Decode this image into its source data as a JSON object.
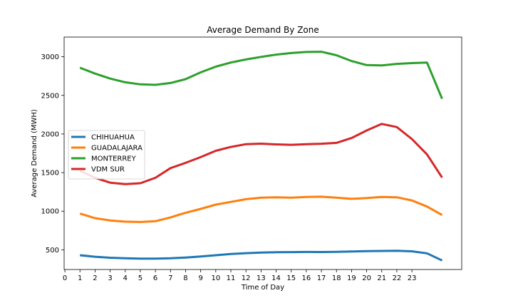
{
  "chart_data": {
    "type": "line",
    "title": "Average Demand By Zone",
    "xlabel": "Time of Day",
    "ylabel": "Average Demand (MWH)",
    "xlim": [
      -0.05,
      26.3
    ],
    "ylim": [
      245,
      3255
    ],
    "xticks": [
      0,
      1,
      2,
      3,
      4,
      5,
      6,
      7,
      8,
      9,
      10,
      11,
      12,
      13,
      14,
      15,
      16,
      17,
      18,
      19,
      20,
      21,
      22,
      23
    ],
    "yticks": [
      500,
      1000,
      1500,
      2000,
      2500,
      3000
    ],
    "grid": false,
    "legend_position": "center-left",
    "x": [
      1,
      2,
      3,
      4,
      5,
      6,
      7,
      8,
      9,
      10,
      11,
      12,
      13,
      14,
      15,
      16,
      17,
      18,
      19,
      20,
      21,
      22,
      23,
      24,
      25
    ],
    "series": [
      {
        "name": "CHIHUAHUA",
        "color": "#1f77b4",
        "values": [
          430,
          410,
          397,
          390,
          386,
          385,
          390,
          400,
          413,
          430,
          445,
          456,
          464,
          468,
          470,
          472,
          471,
          473,
          478,
          483,
          485,
          487,
          480,
          455,
          362
        ]
      },
      {
        "name": "GUADALAJARA",
        "color": "#ff7f0e",
        "values": [
          970,
          910,
          880,
          865,
          860,
          870,
          920,
          980,
          1030,
          1085,
          1120,
          1155,
          1175,
          1180,
          1175,
          1185,
          1188,
          1175,
          1160,
          1170,
          1185,
          1180,
          1140,
          1060,
          950
        ]
      },
      {
        "name": "MONTERREY",
        "color": "#2ca02c",
        "values": [
          2858,
          2782,
          2718,
          2670,
          2643,
          2636,
          2660,
          2710,
          2798,
          2872,
          2925,
          2965,
          2998,
          3028,
          3048,
          3062,
          3065,
          3020,
          2945,
          2892,
          2888,
          2908,
          2918,
          2925,
          2455
        ]
      },
      {
        "name": "VDM SUR",
        "color": "#d62728",
        "values": [
          1525,
          1432,
          1370,
          1350,
          1362,
          1432,
          1558,
          1626,
          1700,
          1782,
          1832,
          1868,
          1875,
          1865,
          1860,
          1868,
          1874,
          1885,
          1948,
          2045,
          2130,
          2090,
          1935,
          1735,
          1435
        ]
      }
    ]
  }
}
